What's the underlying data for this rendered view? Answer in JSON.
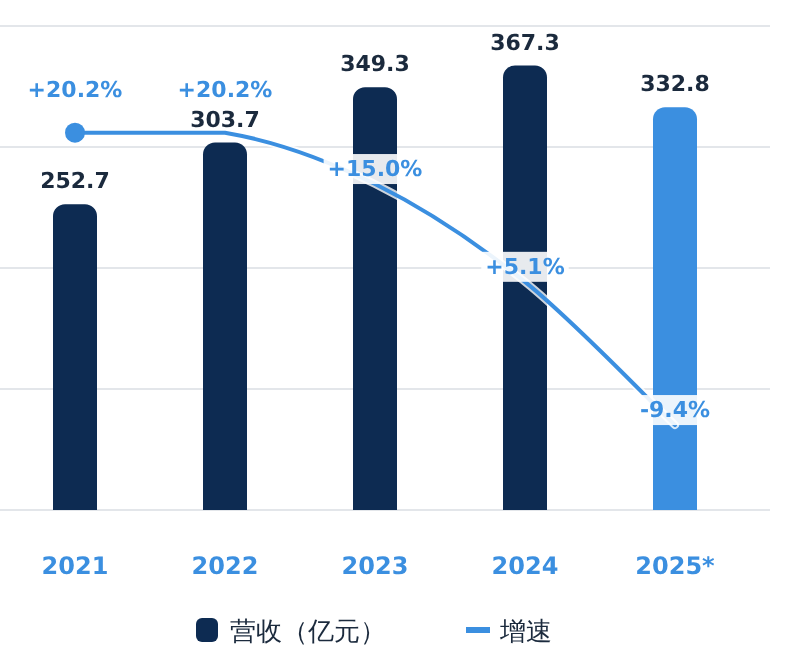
{
  "chart_data": {
    "type": "bar",
    "categories": [
      "2021",
      "2022",
      "2023",
      "2024",
      "2025*"
    ],
    "series": [
      {
        "name": "营收（亿元）",
        "colors": [
          "#0d2b52",
          "#0d2b52",
          "#0d2b52",
          "#0d2b52",
          "#3b8fe0"
        ],
        "values": [
          252.7,
          303.7,
          349.3,
          367.3,
          332.8
        ]
      },
      {
        "name": "增速",
        "type": "line",
        "axis": "y2",
        "color": "#3b8fe0",
        "values": [
          20.2,
          20.2,
          15.0,
          5.1,
          -9.4
        ],
        "value_labels": [
          "+20.2%",
          "+20.2%",
          "+15.0%",
          "+5.1%",
          "-9.4%"
        ]
      }
    ],
    "ylim": [
      0,
      400
    ],
    "yticks": [
      {
        "value": 0,
        "label": null
      },
      {
        "value": 100,
        "label": null
      },
      {
        "value": 200,
        "label": null
      },
      {
        "value": 300,
        "label": null
      },
      {
        "value": 400,
        "label": null
      }
    ],
    "y2lim": [
      -18,
      31
    ],
    "grid": "y",
    "legend": "bottom",
    "data_labels": true,
    "tick_labels": "x"
  }
}
